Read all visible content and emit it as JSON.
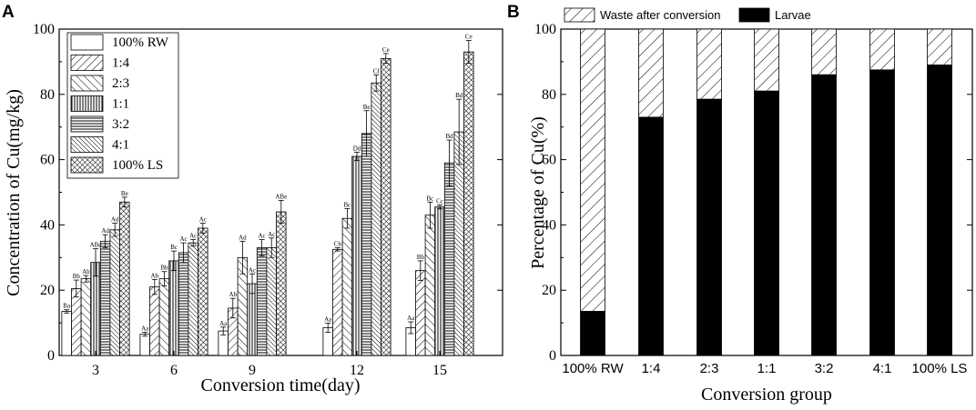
{
  "chart_data": [
    {
      "panel": "A",
      "type": "bar",
      "title": "",
      "xlabel": "Conversion time(day)",
      "ylabel": "Concentration of Cu(mg/kg)",
      "ylim": [
        0,
        100
      ],
      "yticks": [
        "0",
        "20",
        "40",
        "60",
        "80",
        "100"
      ],
      "categories": [
        "3",
        "6",
        "9",
        "12",
        "15"
      ],
      "legend_position": "top-left",
      "series": [
        {
          "name": "100% RW",
          "pattern": "none",
          "values": [
            13.5,
            6.5,
            7.5,
            8.5,
            8.5
          ],
          "errors": [
            0.5,
            0.6,
            1.2,
            1.4,
            1.8
          ],
          "labels": [
            "Ba",
            "Aa",
            "Aa",
            "Aa",
            "Aa"
          ]
        },
        {
          "name": "1:4",
          "pattern": "fwd-diag",
          "values": [
            20.5,
            21.0,
            14.5,
            32.5,
            26.0
          ],
          "errors": [
            2.6,
            2.3,
            3.0,
            0.5,
            3.0
          ],
          "labels": [
            "Bb",
            "Ab",
            "Ab",
            "Cb",
            "Bb"
          ]
        },
        {
          "name": "2:3",
          "pattern": "back-diag",
          "values": [
            23.5,
            23.5,
            30.0,
            42.0,
            43.0
          ],
          "errors": [
            1.0,
            2.2,
            5.0,
            3.0,
            4.0
          ],
          "labels": [
            "Ab",
            "Bb",
            "Ad",
            "Bc",
            "Bc"
          ]
        },
        {
          "name": "1:1",
          "pattern": "vertical",
          "values": [
            28.5,
            29.0,
            22.0,
            61.0,
            45.5
          ],
          "errors": [
            4.2,
            3.0,
            3.0,
            1.3,
            0.6
          ],
          "labels": [
            "ABc",
            "Bc",
            "Ac",
            "Dd",
            "Cc"
          ]
        },
        {
          "name": "3:2",
          "pattern": "horizontal",
          "values": [
            35.0,
            31.5,
            33.0,
            68.0,
            59.0
          ],
          "errors": [
            2.0,
            3.0,
            2.5,
            7.0,
            7.0
          ],
          "labels": [
            "Ad",
            "Ac",
            "Ac",
            "Be",
            "Bd"
          ]
        },
        {
          "name": "4:1",
          "pattern": "dense-back",
          "values": [
            38.5,
            34.5,
            33.0,
            83.5,
            68.5
          ],
          "errors": [
            2.0,
            1.0,
            3.0,
            2.5,
            10.0
          ],
          "labels": [
            "Ad",
            "Ac",
            "Ac",
            "Cf",
            "Bd"
          ]
        },
        {
          "name": "100% LS",
          "pattern": "cross",
          "values": [
            47.0,
            39.0,
            44.0,
            91.0,
            93.0
          ],
          "errors": [
            1.5,
            1.5,
            3.5,
            1.5,
            3.5
          ],
          "labels": [
            "Be",
            "Ac",
            "ABe",
            "Ce",
            "Ce"
          ]
        }
      ]
    },
    {
      "panel": "B",
      "type": "bar",
      "stacked": true,
      "title": "",
      "xlabel": "Conversion group",
      "ylabel": "Percentage of Cu(%)",
      "ylim": [
        0,
        100
      ],
      "yticks": [
        "0",
        "20",
        "40",
        "60",
        "80",
        "100"
      ],
      "categories": [
        "100% RW",
        "1:4",
        "2:3",
        "1:1",
        "3:2",
        "4:1",
        "100% LS"
      ],
      "legend_position": "top",
      "series": [
        {
          "name": "Larvae",
          "fill": "black",
          "values": [
            13.5,
            73.0,
            78.5,
            81.0,
            86.0,
            87.5,
            89.0
          ]
        },
        {
          "name": "Waste after conversion",
          "fill": "hatched",
          "values": [
            86.5,
            27.0,
            21.5,
            19.0,
            14.0,
            12.5,
            11.0
          ]
        }
      ]
    }
  ]
}
